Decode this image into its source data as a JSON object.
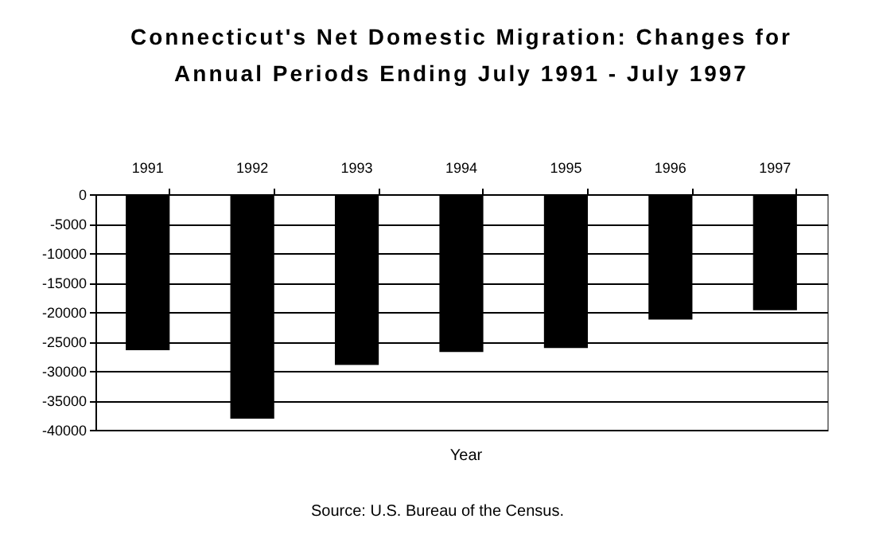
{
  "chart_data": {
    "type": "bar",
    "title": "Connecticut's Net Domestic Migration: Changes for Annual Periods Ending July 1991 - July 1997",
    "xlabel": "Year",
    "categories": [
      "1991",
      "1992",
      "1993",
      "1994",
      "1995",
      "1996",
      "1997"
    ],
    "values": [
      -26500,
      -38100,
      -29000,
      -26800,
      -26100,
      -21300,
      -19700
    ],
    "color": "#000000",
    "ylim": [
      -40000,
      0
    ],
    "yticks": [
      -40000,
      -35000,
      -30000,
      -25000,
      -20000,
      -15000,
      -10000,
      -5000,
      0
    ],
    "grid": "y",
    "annotations": [
      "Source: U.S. Bureau of the Census."
    ]
  }
}
